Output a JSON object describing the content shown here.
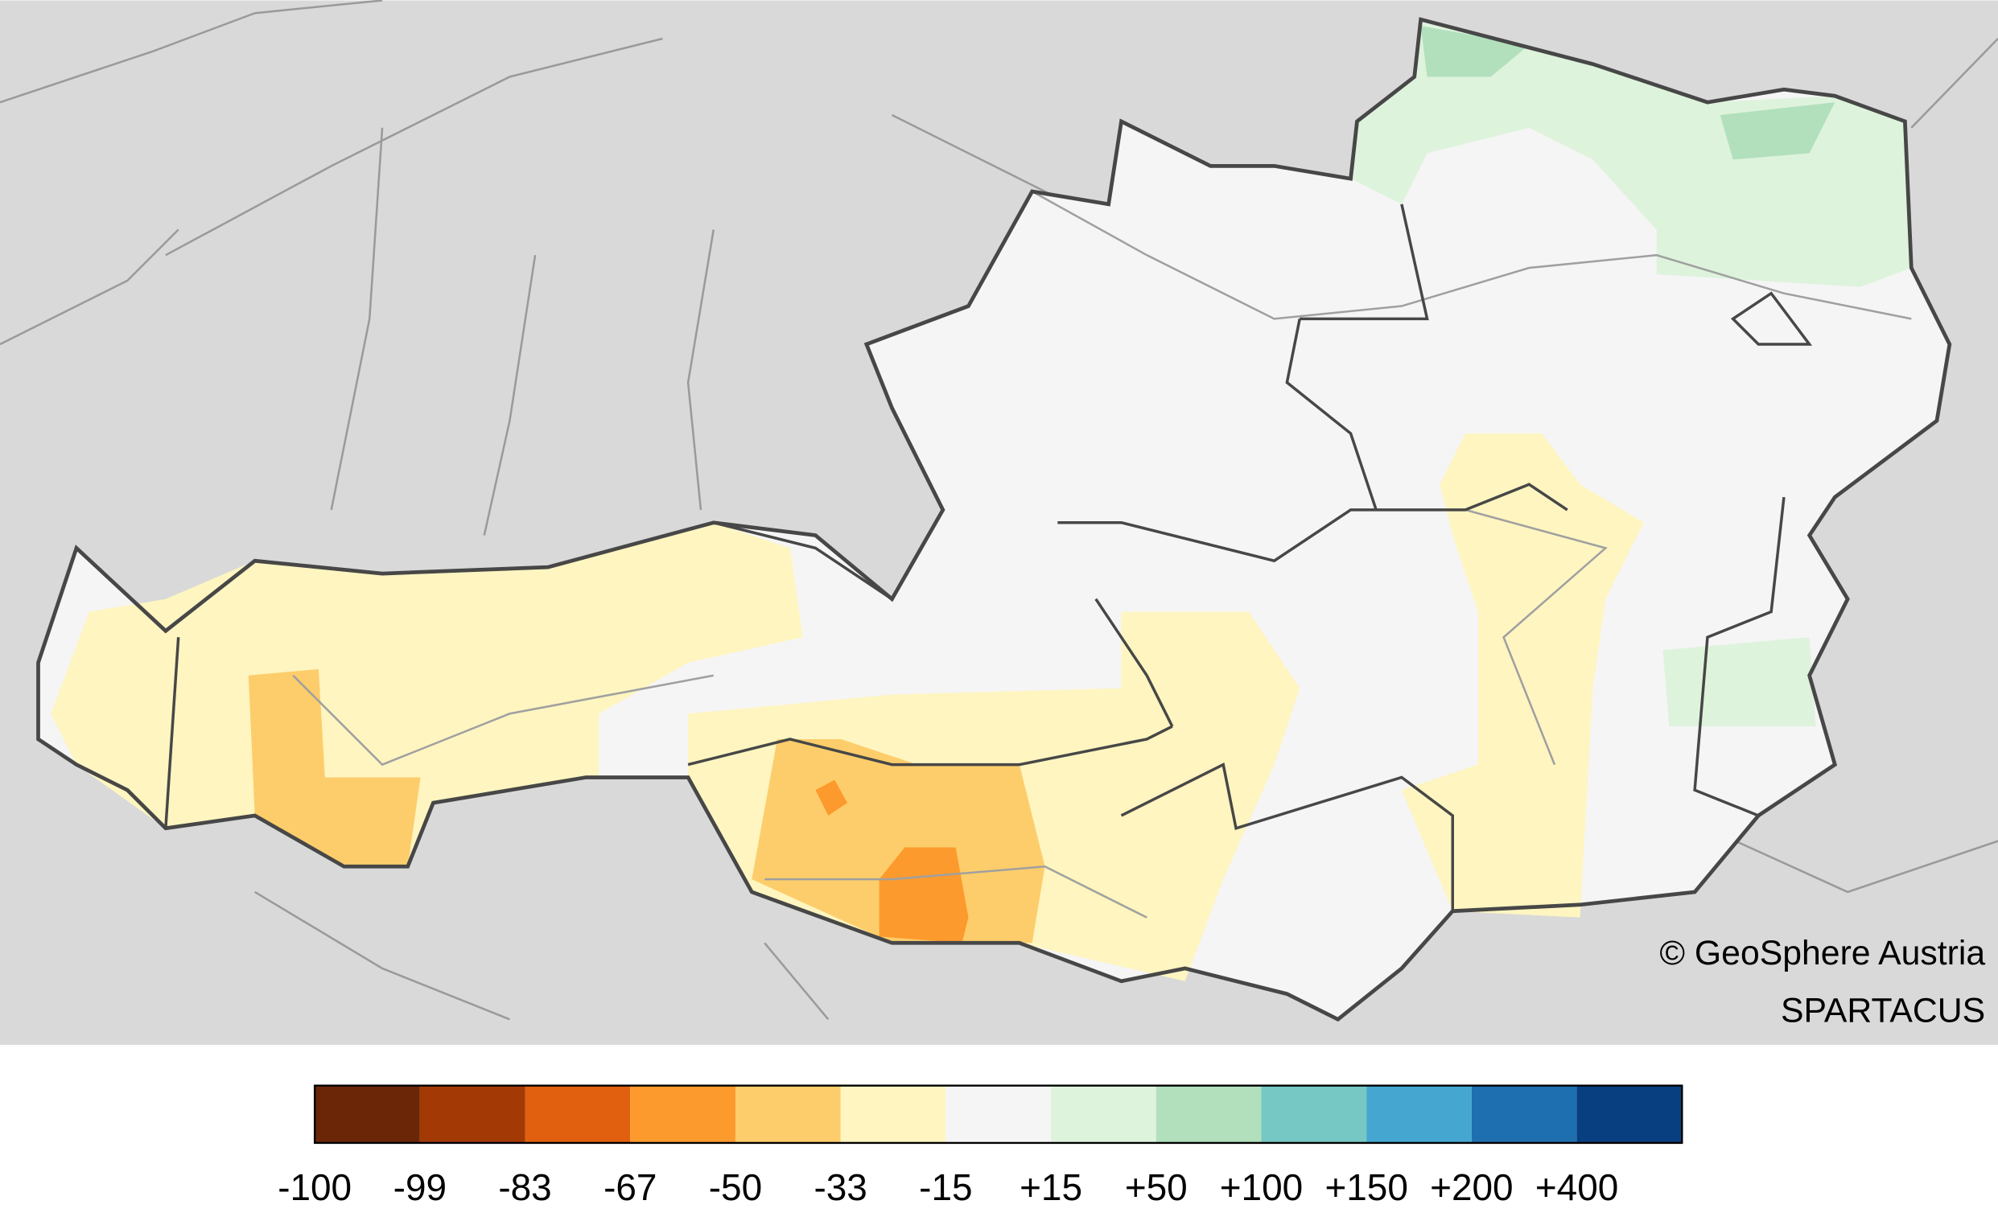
{
  "credit": {
    "copyright": "© GeoSphere Austria",
    "source": "SPARTACUS"
  },
  "legend": {
    "colors": [
      "#6b2608",
      "#a33a06",
      "#e0600f",
      "#fd9a2d",
      "#fdcd6b",
      "#fef5c0",
      "#f5f5f5",
      "#def3dc",
      "#b2e0bd",
      "#76c8c4",
      "#45a7d0",
      "#1e6fb0",
      "#083f80"
    ],
    "labels": [
      "-100",
      "-99",
      "-83",
      "-67",
      "-50",
      "-33",
      "-15",
      "+15",
      "+50",
      "+100",
      "+150",
      "+200",
      "+400"
    ]
  }
}
